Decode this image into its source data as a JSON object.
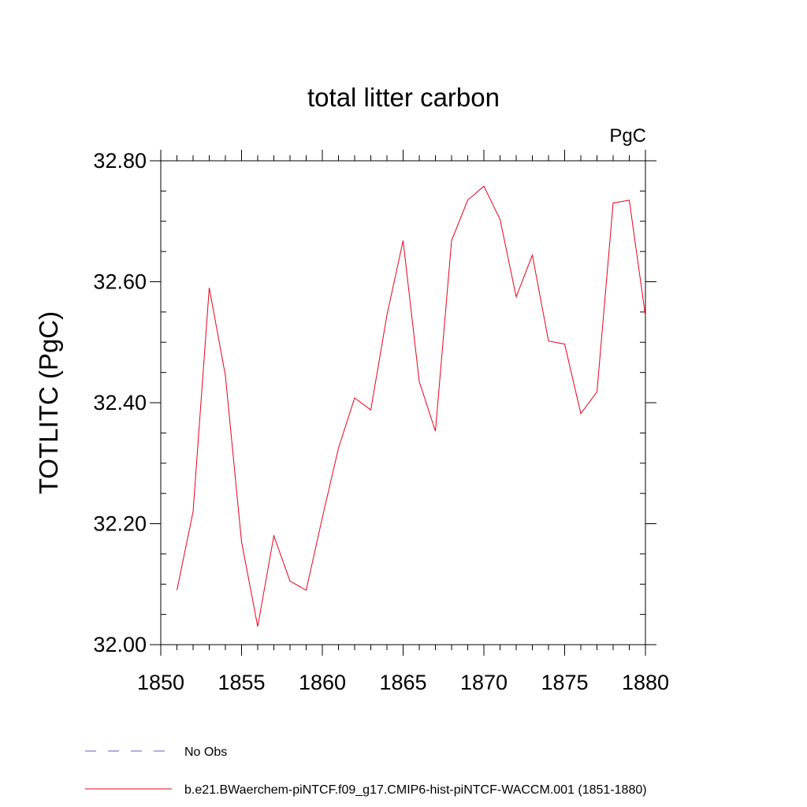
{
  "chart_data": {
    "type": "line",
    "title": "total litter carbon",
    "units_label": "PgC",
    "ylabel": "TOTLITC  (PgC)",
    "xlabel": "",
    "xlim": [
      1850,
      1880
    ],
    "ylim": [
      32.0,
      32.8
    ],
    "x_ticks": [
      "1850",
      "1855",
      "1860",
      "1865",
      "1870",
      "1875",
      "1880"
    ],
    "y_ticks": [
      "32.00",
      "32.20",
      "32.40",
      "32.60",
      "32.80"
    ],
    "grid": false,
    "series": [
      {
        "name": "b.e21.BWaerchem-piNTCF.f09_g17.CMIP6-hist-piNTCF-WACCM.001 (1851-1880)",
        "color": "#e8001c",
        "x": [
          1851,
          1852,
          1853,
          1854,
          1855,
          1856,
          1857,
          1858,
          1859,
          1860,
          1861,
          1862,
          1863,
          1864,
          1865,
          1866,
          1867,
          1868,
          1869,
          1870,
          1871,
          1872,
          1873,
          1874,
          1875,
          1876,
          1877,
          1878,
          1879,
          1880
        ],
        "y": [
          32.09,
          32.22,
          32.59,
          32.445,
          32.17,
          32.03,
          32.18,
          32.105,
          32.09,
          32.21,
          32.325,
          32.408,
          32.388,
          32.545,
          32.668,
          32.435,
          32.353,
          32.668,
          32.735,
          32.758,
          32.703,
          32.575,
          32.644,
          32.502,
          32.497,
          32.382,
          32.418,
          32.73,
          32.735,
          32.543
        ]
      }
    ],
    "legend": [
      {
        "label": "No Obs",
        "style": "dashed",
        "color": "#6a5acd"
      },
      {
        "label": "b.e21.BWaerchem-piNTCF.f09_g17.CMIP6-hist-piNTCF-WACCM.001 (1851-1880)",
        "style": "solid",
        "color": "#e8001c"
      }
    ],
    "legend_placement": "bottom-left"
  }
}
